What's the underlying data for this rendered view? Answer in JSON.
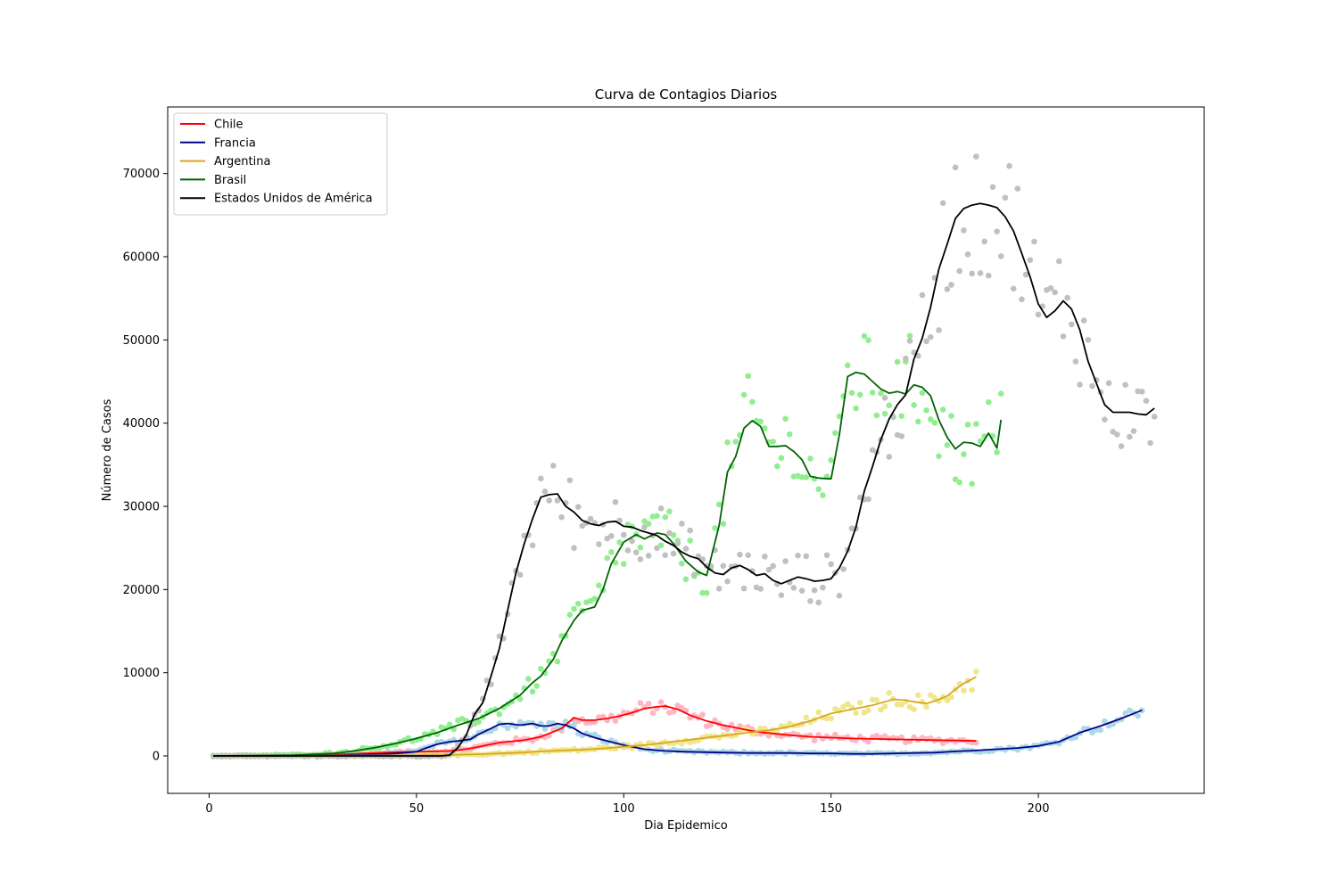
{
  "chart_data": {
    "type": "line",
    "title": "Curva de Contagios Diarios",
    "xlabel": "Dia Epidemico",
    "ylabel": "Número de Casos",
    "xlim": [
      -10,
      240
    ],
    "ylim": [
      -4500,
      78000
    ],
    "xticks": [
      0,
      50,
      100,
      150,
      200
    ],
    "yticks": [
      0,
      10000,
      20000,
      30000,
      40000,
      50000,
      60000,
      70000
    ],
    "grid": false,
    "legend_position": "top-left",
    "series": [
      {
        "name": "Chile",
        "line_color": "#ff0000",
        "point_color": "#ffb6c1",
        "x": [
          1,
          10,
          20,
          30,
          35,
          40,
          45,
          50,
          55,
          58,
          60,
          63,
          65,
          68,
          70,
          72,
          74,
          76,
          78,
          80,
          82,
          85,
          88,
          90,
          93,
          96,
          99,
          102,
          105,
          108,
          110,
          113,
          116,
          120,
          124,
          128,
          132,
          136,
          140,
          145,
          150,
          155,
          160,
          165,
          170,
          175,
          180,
          185
        ],
        "y": [
          0,
          0,
          50,
          150,
          250,
          350,
          450,
          500,
          550,
          600,
          700,
          900,
          1100,
          1400,
          1600,
          1700,
          1800,
          1900,
          2100,
          2300,
          2700,
          3300,
          4600,
          4300,
          4300,
          4500,
          4800,
          5200,
          5700,
          5900,
          6000,
          5600,
          4900,
          4200,
          3700,
          3300,
          2900,
          2700,
          2500,
          2300,
          2200,
          2100,
          2050,
          2000,
          1950,
          1900,
          1850,
          1800
        ]
      },
      {
        "name": "Francia",
        "line_color": "#00008b",
        "point_color": "#add8e6",
        "x": [
          1,
          20,
          30,
          35,
          40,
          45,
          50,
          52,
          55,
          58,
          60,
          63,
          65,
          68,
          70,
          72,
          75,
          78,
          80,
          82,
          84,
          86,
          88,
          90,
          93,
          96,
          100,
          105,
          110,
          115,
          120,
          125,
          130,
          135,
          140,
          145,
          150,
          155,
          160,
          165,
          170,
          175,
          180,
          185,
          190,
          195,
          200,
          205,
          210,
          215,
          220,
          225
        ],
        "y": [
          0,
          20,
          60,
          120,
          200,
          300,
          500,
          900,
          1400,
          1700,
          1800,
          2000,
          2600,
          3300,
          3800,
          3900,
          3700,
          3900,
          3600,
          3600,
          3900,
          3700,
          3300,
          2700,
          2200,
          1800,
          1300,
          800,
          600,
          500,
          450,
          400,
          350,
          350,
          350,
          300,
          300,
          250,
          250,
          300,
          350,
          400,
          550,
          650,
          800,
          950,
          1200,
          1700,
          2800,
          3600,
          4500,
          5500
        ]
      },
      {
        "name": "Argentina",
        "line_color": "#daa520",
        "point_color": "#f0e68c",
        "x": [
          1,
          20,
          40,
          55,
          60,
          65,
          70,
          75,
          80,
          85,
          90,
          95,
          100,
          105,
          110,
          115,
          120,
          125,
          130,
          135,
          140,
          145,
          150,
          155,
          160,
          163,
          165,
          168,
          170,
          173,
          175,
          178,
          180,
          182,
          185
        ],
        "y": [
          0,
          10,
          50,
          100,
          150,
          200,
          300,
          400,
          550,
          650,
          750,
          900,
          1100,
          1300,
          1600,
          1900,
          2200,
          2500,
          2800,
          3100,
          3500,
          4200,
          5100,
          5600,
          6100,
          6500,
          6800,
          6700,
          6500,
          6300,
          6600,
          7200,
          8000,
          8700,
          9500
        ]
      },
      {
        "name": "Brasil",
        "line_color": "#006400",
        "point_color": "#90ee90",
        "x": [
          1,
          20,
          30,
          35,
          40,
          45,
          50,
          55,
          60,
          65,
          70,
          75,
          78,
          80,
          83,
          85,
          88,
          90,
          93,
          95,
          97,
          100,
          103,
          105,
          108,
          110,
          112,
          115,
          118,
          120,
          123,
          125,
          127,
          129,
          131,
          133,
          135,
          137,
          139,
          141,
          143,
          145,
          147,
          150,
          152,
          154,
          156,
          158,
          160,
          162,
          164,
          166,
          168,
          170,
          172,
          174,
          176,
          178,
          180,
          182,
          184,
          186,
          188,
          190,
          191
        ],
        "y": [
          0,
          100,
          300,
          600,
          1000,
          1500,
          2100,
          2800,
          3700,
          4500,
          5700,
          7300,
          8800,
          9600,
          11600,
          13800,
          16300,
          17500,
          17900,
          20000,
          23100,
          25700,
          26600,
          26100,
          26800,
          26600,
          25500,
          23400,
          22100,
          21700,
          27700,
          34100,
          36000,
          39400,
          40300,
          39600,
          37200,
          37200,
          37300,
          36600,
          35600,
          33600,
          33400,
          33300,
          38600,
          45600,
          46100,
          45900,
          45000,
          44100,
          43600,
          43800,
          43500,
          44600,
          44300,
          43300,
          40400,
          38300,
          36900,
          37700,
          37600,
          37200,
          38800,
          37000,
          40400
        ]
      },
      {
        "name": "Estados Unidos de América",
        "line_color": "#000000",
        "point_color": "#c0c0c0",
        "x": [
          1,
          30,
          50,
          56,
          58,
          60,
          62,
          64,
          66,
          68,
          70,
          72,
          74,
          76,
          78,
          80,
          82,
          84,
          86,
          88,
          90,
          92,
          94,
          96,
          98,
          100,
          102,
          104,
          106,
          108,
          110,
          112,
          114,
          116,
          118,
          120,
          122,
          124,
          126,
          128,
          130,
          132,
          134,
          136,
          138,
          140,
          142,
          144,
          146,
          148,
          150,
          152,
          154,
          156,
          158,
          160,
          162,
          164,
          166,
          168,
          170,
          172,
          174,
          176,
          178,
          180,
          182,
          184,
          186,
          188,
          190,
          192,
          194,
          196,
          198,
          200,
          202,
          204,
          206,
          208,
          210,
          212,
          214,
          216,
          218,
          220,
          222,
          224,
          226,
          228
        ],
        "y": [
          0,
          0,
          0,
          0,
          100,
          1000,
          2500,
          5000,
          6400,
          9600,
          12900,
          17500,
          22000,
          25500,
          28500,
          31100,
          31400,
          31500,
          30000,
          29300,
          28300,
          27900,
          27700,
          28100,
          28200,
          27600,
          27500,
          27100,
          26800,
          26500,
          25800,
          25300,
          24500,
          24000,
          23700,
          22700,
          22000,
          21800,
          22600,
          22900,
          22400,
          21700,
          21900,
          21100,
          20700,
          21100,
          21500,
          21300,
          21000,
          21100,
          21300,
          22600,
          24600,
          27500,
          31800,
          34800,
          38000,
          40500,
          42200,
          43400,
          47700,
          50200,
          53900,
          58500,
          61500,
          64600,
          65800,
          66200,
          66400,
          66200,
          65900,
          64800,
          63100,
          60400,
          57600,
          54300,
          52700,
          53500,
          54700,
          53700,
          51200,
          47400,
          44800,
          42200,
          41300,
          41300,
          41300,
          41100,
          41000,
          41800
        ]
      }
    ]
  }
}
